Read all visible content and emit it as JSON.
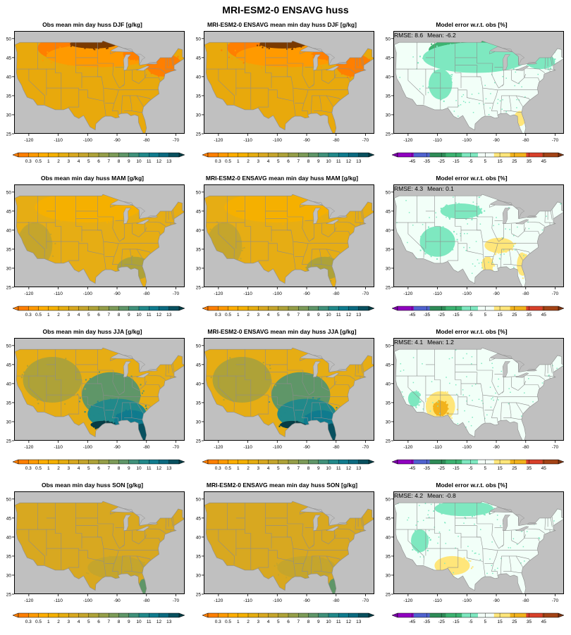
{
  "title": "MRI-ESM2-0 ENSAVG huss",
  "panel_titles": [
    [
      "Obs mean min day  huss DJF [g/kg]",
      "MRI-ESM2-0 ENSAVG mean min day huss DJF [g/kg]",
      "Model error w.r.t. obs [%]"
    ],
    [
      "Obs mean min day  huss MAM [g/kg]",
      "MRI-ESM2-0 ENSAVG mean min day huss MAM [g/kg]",
      "Model error w.r.t. obs [%]"
    ],
    [
      "Obs mean min day  huss JJA [g/kg]",
      "MRI-ESM2-0 ENSAVG mean min day huss JJA [g/kg]",
      "Model error w.r.t. obs [%]"
    ],
    [
      "Obs mean min day  huss SON [g/kg]",
      "MRI-ESM2-0 ENSAVG mean min day huss SON [g/kg]",
      "Model error w.r.t. obs [%]"
    ]
  ],
  "error_stats": [
    {
      "rmse_text": "RMSE: 8.6",
      "mean_text": "Mean: -6.2"
    },
    {
      "rmse_text": "RMSE: 4.3",
      "mean_text": "Mean: 0.1"
    },
    {
      "rmse_text": "RMSE: 4.1",
      "mean_text": "Mean: 1.2"
    },
    {
      "rmse_text": "RMSE: 4.2",
      "mean_text": "Mean: -0.8"
    }
  ],
  "axes": {
    "lon_ticks": [
      "-120",
      "-110",
      "-100",
      "-90",
      "-80",
      "-70"
    ],
    "lat_ticks": [
      "25",
      "30",
      "35",
      "40",
      "45",
      "50"
    ],
    "lon_values": [
      -120,
      -110,
      -100,
      -90,
      -80,
      -70
    ],
    "lat_values": [
      25,
      30,
      35,
      40,
      45,
      50
    ],
    "lon_range": [
      -125,
      -67
    ],
    "lat_range": [
      25,
      52
    ]
  },
  "colorbars": {
    "huss": {
      "labels": [
        "0.3",
        "0.5",
        "1",
        "2",
        "3",
        "4",
        "5",
        "6",
        "7",
        "8",
        "9",
        "10",
        "11",
        "12",
        "13"
      ],
      "colors": [
        "#ff7f00",
        "#ff9a00",
        "#ffae00",
        "#f5b000",
        "#e6ad10",
        "#d8a820",
        "#c5a52c",
        "#aea238",
        "#959e48",
        "#7c9b58",
        "#5f9668",
        "#3f917a",
        "#21898a",
        "#0f7b8e",
        "#0b6a80",
        "#08505f"
      ],
      "end_low": "#ff7f00",
      "end_high": "#073d45"
    },
    "error": {
      "labels": [
        "-45",
        "-35",
        "-25",
        "-15",
        "-5",
        "5",
        "15",
        "25",
        "35",
        "45"
      ],
      "colors": [
        "#9000c0",
        "#4f62cf",
        "#2e8b57",
        "#3cb371",
        "#7ee8c0",
        "#f4fff8",
        "#ffe67a",
        "#f2b21c",
        "#d8402a",
        "#a44316"
      ],
      "end_low": "#7a00a8",
      "end_high": "#7b3412"
    }
  },
  "map_colors": {
    "background": "#c0c0c0",
    "state_lines": "#8c8c8c",
    "land_obs": [
      "#e8a90c",
      "#e6ad14",
      "#e6ad14",
      "#d8a820"
    ],
    "land_err": "#f2fff8"
  }
}
